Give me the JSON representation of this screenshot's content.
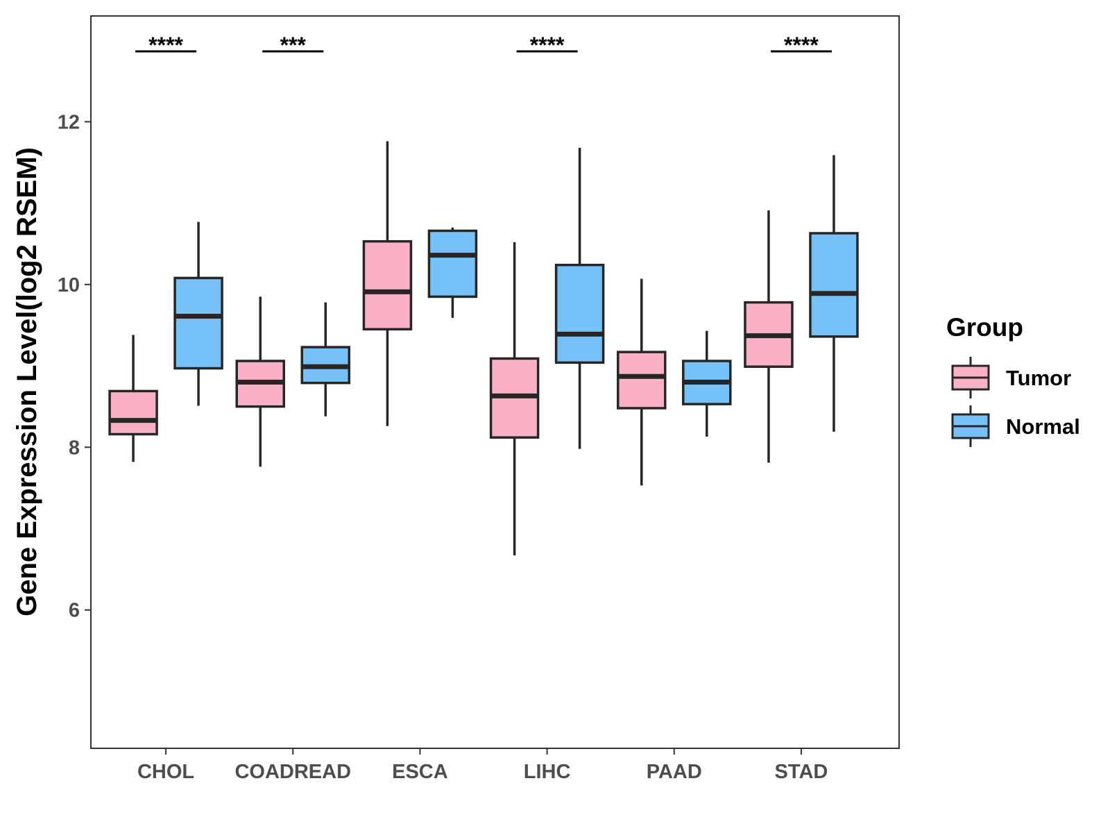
{
  "chart_data": {
    "type": "boxplot",
    "title": "",
    "xlabel": "",
    "ylabel": "Gene Expression Level(log2 RSEM)",
    "ylim": [
      4.3,
      13.3
    ],
    "yticks": [
      6,
      8,
      10,
      12
    ],
    "grid": false,
    "legend_position": "right",
    "legend_title": "Group",
    "categories": [
      "CHOL",
      "COADREAD",
      "ESCA",
      "LIHC",
      "PAAD",
      "STAD"
    ],
    "series": [
      {
        "name": "Tumor",
        "color": "#FBB1C5",
        "boxes": [
          {
            "min": 7.82,
            "q1": 8.16,
            "median": 8.33,
            "q3": 8.69,
            "max": 9.38
          },
          {
            "min": 7.76,
            "q1": 8.5,
            "median": 8.8,
            "q3": 9.06,
            "max": 9.85
          },
          {
            "min": 8.26,
            "q1": 9.45,
            "median": 9.91,
            "q3": 10.53,
            "max": 11.76
          },
          {
            "min": 6.67,
            "q1": 8.12,
            "median": 8.63,
            "q3": 9.09,
            "max": 10.52
          },
          {
            "min": 7.53,
            "q1": 8.48,
            "median": 8.87,
            "q3": 9.17,
            "max": 10.07
          },
          {
            "min": 7.81,
            "q1": 8.99,
            "median": 9.37,
            "q3": 9.78,
            "max": 10.91
          }
        ]
      },
      {
        "name": "Normal",
        "color": "#76C1F8",
        "boxes": [
          {
            "min": 8.51,
            "q1": 8.97,
            "median": 9.61,
            "q3": 10.08,
            "max": 10.77
          },
          {
            "min": 8.38,
            "q1": 8.79,
            "median": 8.99,
            "q3": 9.23,
            "max": 9.78
          },
          {
            "min": 9.59,
            "q1": 9.85,
            "median": 10.36,
            "q3": 10.66,
            "max": 10.7
          },
          {
            "min": 7.98,
            "q1": 9.04,
            "median": 9.39,
            "q3": 10.24,
            "max": 11.68
          },
          {
            "min": 8.13,
            "q1": 8.53,
            "median": 8.8,
            "q3": 9.06,
            "max": 9.43
          },
          {
            "min": 8.19,
            "q1": 9.36,
            "median": 9.89,
            "q3": 10.63,
            "max": 11.59
          }
        ]
      }
    ],
    "annotations": [
      {
        "category": "CHOL",
        "label": "****"
      },
      {
        "category": "COADREAD",
        "label": "***"
      },
      {
        "category": "LIHC",
        "label": "****"
      },
      {
        "category": "STAD",
        "label": "****"
      }
    ]
  }
}
